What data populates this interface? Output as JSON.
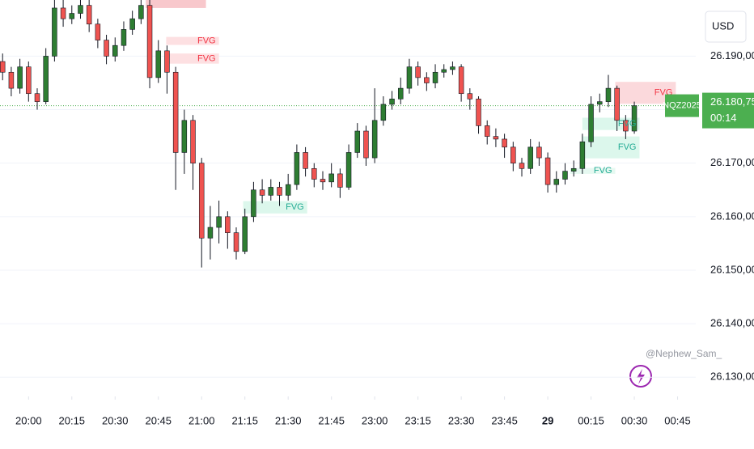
{
  "chart_data": {
    "type": "candlestick",
    "symbol": "NQZ2025",
    "currency": "USD",
    "watermark": "@Nephew_Sam_",
    "countdown": "00:14",
    "last_price": {
      "value": 26180.75,
      "label": "26.180,75"
    },
    "up_color": "#2e7d32",
    "down_color": "#ef5350",
    "grid": true,
    "ylim": [
      26126.4,
      26200.5
    ],
    "yticks": [
      {
        "value": 26130,
        "label": "26.130,00"
      },
      {
        "value": 26140,
        "label": "26.140,00"
      },
      {
        "value": 26150,
        "label": "26.150,00"
      },
      {
        "value": 26160,
        "label": "26.160,00"
      },
      {
        "value": 26170,
        "label": "26.170,00"
      },
      {
        "value": 26180,
        "label": "26.180,00"
      },
      {
        "value": 26190,
        "label": "26.190,00"
      }
    ],
    "xlim": [
      -0.3,
      80.1
    ],
    "xticks": [
      {
        "value": 3,
        "label": "20:00"
      },
      {
        "value": 8,
        "label": "20:15"
      },
      {
        "value": 13,
        "label": "20:30"
      },
      {
        "value": 18,
        "label": "20:45"
      },
      {
        "value": 23,
        "label": "21:00"
      },
      {
        "value": 28,
        "label": "21:15"
      },
      {
        "value": 33,
        "label": "21:30"
      },
      {
        "value": 38,
        "label": "21:45"
      },
      {
        "value": 43,
        "label": "23:00"
      },
      {
        "value": 48,
        "label": "23:15"
      },
      {
        "value": 53,
        "label": "23:30"
      },
      {
        "value": 58,
        "label": "23:45"
      },
      {
        "value": 63,
        "label": "29",
        "bold": true
      },
      {
        "value": 68,
        "label": "00:15"
      },
      {
        "value": 73,
        "label": "00:30"
      },
      {
        "value": 78,
        "label": "00:45"
      }
    ],
    "open": [
      26189,
      26187,
      26184,
      26188,
      26183,
      26181.5,
      26190,
      26199,
      26197,
      26198,
      26199.5,
      26196,
      26193,
      26190,
      26192,
      26195,
      26197,
      26199.5,
      26186,
      26191,
      26187,
      26172,
      26178,
      26170,
      26156,
      26158,
      26160,
      26157,
      26153.5,
      26160,
      26165,
      26164,
      26165.5,
      26164,
      26166,
      26172,
      26169,
      26167,
      26166.5,
      26168,
      26165.5,
      26172,
      26176,
      26171,
      26178,
      26181,
      26182,
      26184,
      26188,
      26186,
      26185,
      26187,
      26187.5,
      26188,
      26183,
      26182,
      26177,
      26175,
      26174.5,
      26173,
      26170,
      26169,
      26173,
      26171,
      26166,
      26167,
      26168.5,
      26169,
      26174,
      26181,
      26181.5,
      26184,
      26178,
      26176
    ],
    "high": [
      26190.5,
      26188,
      26189.5,
      26189,
      26184,
      26191.5,
      26200.5,
      26200.5,
      26199.5,
      26200.5,
      26200.5,
      26197,
      26194,
      26193.5,
      26196.5,
      26198.5,
      26200.5,
      26200.5,
      26193,
      26192,
      26188,
      26180,
      26179,
      26171,
      26162,
      26163,
      26161,
      26158,
      26161.5,
      26166.5,
      26167,
      26167,
      26166.5,
      26168,
      26173.5,
      26173,
      26170,
      26168.5,
      26170,
      26169,
      26173.5,
      26177.5,
      26177,
      26184,
      26182.5,
      26183.5,
      26186,
      26189.5,
      26189,
      26187,
      26188.5,
      26188.5,
      26189,
      26188.5,
      26184,
      26182.5,
      26178,
      26176.5,
      26175.5,
      26174,
      26171,
      26174.5,
      26174,
      26172,
      26168.5,
      26170,
      26170.5,
      26175.5,
      26182.5,
      26183,
      26186.5,
      26184.5,
      26179,
      26181.5
    ],
    "low": [
      26185.5,
      26182.5,
      26183,
      26181.5,
      26180,
      26181,
      26189,
      26195.5,
      26196,
      26197,
      26194.5,
      26191.5,
      26188.5,
      26189,
      26191,
      26194,
      26196,
      26184,
      26185,
      26183,
      26165,
      26168,
      26165,
      26150.5,
      26152,
      26155,
      26154,
      26152,
      26153,
      26159,
      26162.5,
      26163,
      26162,
      26163,
      26165,
      26167.5,
      26165.5,
      26165,
      26165.5,
      26163.5,
      26165,
      26171,
      26169.5,
      26170,
      26177,
      26180,
      26181,
      26183,
      26184.5,
      26183.5,
      26184,
      26186,
      26186.5,
      26181.5,
      26180,
      26175.5,
      26173.5,
      26173,
      26171,
      26168.5,
      26167.5,
      26168,
      26169.5,
      26164.5,
      26164.5,
      26166,
      26167.5,
      26168,
      26173,
      26179.5,
      26180.5,
      26176,
      26174.5,
      26175.5
    ],
    "close": [
      26187,
      26184,
      26188,
      26183,
      26181.5,
      26190,
      26199,
      26197,
      26198,
      26199.5,
      26196,
      26193,
      26190,
      26192,
      26195,
      26197,
      26199.5,
      26186,
      26191,
      26187,
      26172,
      26178,
      26170,
      26156,
      26158,
      26160,
      26157,
      26153.5,
      26160,
      26165,
      26164,
      26165.5,
      26164,
      26166,
      26172,
      26169,
      26167,
      26166.5,
      26168,
      26165.5,
      26172,
      26176,
      26171,
      26178,
      26181,
      26182,
      26184,
      26188,
      26186,
      26185,
      26187,
      26187.5,
      26188,
      26183,
      26182,
      26177,
      26175,
      26174.5,
      26173,
      26170,
      26169,
      26173,
      26171,
      26166,
      26167,
      26168.5,
      26169,
      26174,
      26181,
      26181.5,
      26184,
      26178,
      26176,
      26180.75
    ],
    "zones": [
      {
        "color": "#f8c8cc",
        "text_color": "#f23645",
        "x": [
          16.55,
          23.5
        ],
        "y": [
          26199,
          26200.5
        ]
      },
      {
        "color": "#fde0e2",
        "text_color": "#f23645",
        "x": [
          18.9,
          25
        ],
        "y": [
          26192.1,
          26193.6
        ],
        "label": "FVG"
      },
      {
        "color": "#fde0e2",
        "text_color": "#f23645",
        "x": [
          18.9,
          25
        ],
        "y": [
          26188.6,
          26190.5
        ],
        "label": "FVG"
      },
      {
        "color": "#fbd9dc",
        "text_color": "#f23645",
        "x": [
          70.8,
          77.8
        ],
        "y": [
          26181.1,
          26185.2
        ],
        "label": "FVG"
      },
      {
        "color": "#dcf7ec",
        "text_color": "#22ab94",
        "x": [
          27.8,
          35.2
        ],
        "y": [
          26160.6,
          26162.9
        ],
        "label": "FVG"
      },
      {
        "color": "#dcf7ec",
        "text_color": "#22ab94",
        "x": [
          67,
          73.6
        ],
        "y": [
          26176.2,
          26178.5
        ],
        "label": "FVG"
      },
      {
        "color": "#dcf7ec",
        "text_color": "#22ab94",
        "x": [
          67,
          73.6
        ],
        "y": [
          26170.9,
          26175
        ],
        "label": "FVG"
      },
      {
        "color": "#e6f9f1",
        "text_color": "#22ab94",
        "x": [
          65.6,
          70.8
        ],
        "y": [
          26168,
          26169.1
        ],
        "label": "FVG"
      }
    ]
  }
}
